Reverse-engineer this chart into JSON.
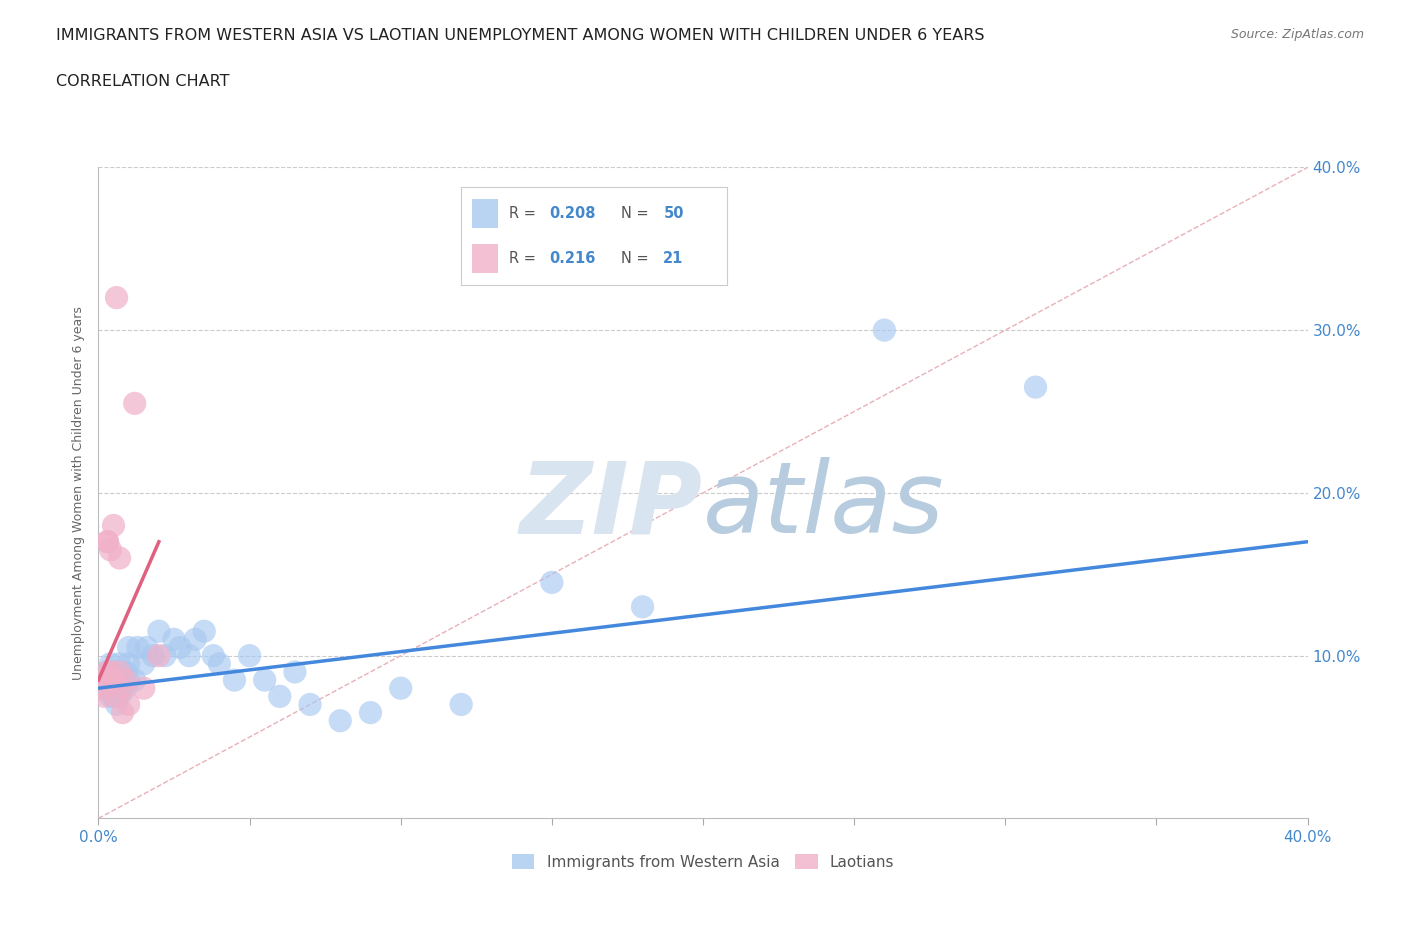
{
  "title_line1": "IMMIGRANTS FROM WESTERN ASIA VS LAOTIAN UNEMPLOYMENT AMONG WOMEN WITH CHILDREN UNDER 6 YEARS",
  "title_line2": "CORRELATION CHART",
  "source_text": "Source: ZipAtlas.com",
  "ylabel": "Unemployment Among Women with Children Under 6 years",
  "xlim": [
    0.0,
    0.4
  ],
  "ylim": [
    0.0,
    0.4
  ],
  "blue_color": "#a8c8f0",
  "pink_color": "#f0b0c8",
  "blue_line_color": "#4488dd",
  "pink_line_color": "#e06080",
  "diag_color": "#e8b0b8",
  "watermark_color": "#dde8f4",
  "background_color": "#ffffff",
  "blue_scatter_x": [
    0.002,
    0.003,
    0.003,
    0.004,
    0.004,
    0.005,
    0.005,
    0.005,
    0.006,
    0.006,
    0.006,
    0.007,
    0.007,
    0.007,
    0.008,
    0.008,
    0.008,
    0.009,
    0.009,
    0.01,
    0.01,
    0.01,
    0.012,
    0.013,
    0.015,
    0.016,
    0.018,
    0.02,
    0.022,
    0.025,
    0.027,
    0.03,
    0.032,
    0.035,
    0.038,
    0.04,
    0.045,
    0.05,
    0.055,
    0.06,
    0.065,
    0.07,
    0.08,
    0.09,
    0.1,
    0.12,
    0.15,
    0.18,
    0.26,
    0.31
  ],
  "blue_scatter_y": [
    0.085,
    0.09,
    0.08,
    0.095,
    0.075,
    0.09,
    0.085,
    0.075,
    0.09,
    0.08,
    0.07,
    0.085,
    0.095,
    0.075,
    0.09,
    0.085,
    0.08,
    0.09,
    0.08,
    0.095,
    0.085,
    0.105,
    0.085,
    0.105,
    0.095,
    0.105,
    0.1,
    0.115,
    0.1,
    0.11,
    0.105,
    0.1,
    0.11,
    0.115,
    0.1,
    0.095,
    0.085,
    0.1,
    0.085,
    0.075,
    0.09,
    0.07,
    0.06,
    0.065,
    0.08,
    0.07,
    0.145,
    0.13,
    0.3,
    0.265
  ],
  "pink_scatter_x": [
    0.001,
    0.002,
    0.002,
    0.003,
    0.003,
    0.003,
    0.004,
    0.004,
    0.005,
    0.005,
    0.006,
    0.006,
    0.007,
    0.007,
    0.008,
    0.008,
    0.009,
    0.01,
    0.012,
    0.015,
    0.02
  ],
  "pink_scatter_y": [
    0.08,
    0.085,
    0.075,
    0.17,
    0.17,
    0.09,
    0.165,
    0.09,
    0.18,
    0.085,
    0.32,
    0.075,
    0.16,
    0.09,
    0.08,
    0.065,
    0.085,
    0.07,
    0.255,
    0.08,
    0.1
  ],
  "blue_trend_x0": 0.0,
  "blue_trend_y0": 0.08,
  "blue_trend_x1": 0.4,
  "blue_trend_y1": 0.17,
  "pink_trend_x0": 0.0,
  "pink_trend_y0": 0.085,
  "pink_trend_x1": 0.02,
  "pink_trend_y1": 0.17
}
